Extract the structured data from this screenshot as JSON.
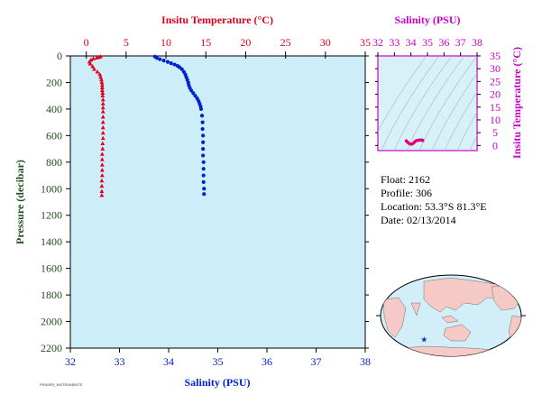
{
  "colors": {
    "temperature": "#e0001b",
    "salinity": "#0022cc",
    "pressure_axis": "#1f4f1f",
    "ts_axis": "#cc00cc",
    "plot_bg": "#cdeef8",
    "ts_bg": "#d8f1f8"
  },
  "chart_data": [
    {
      "type": "line",
      "title": "",
      "top_axis_label": "Insitu Temperature (°C)",
      "bottom_axis_label": "Salinity (PSU)",
      "left_axis_label": "Pressure (decibar)",
      "temperature_axis": {
        "range": [
          -2,
          35
        ],
        "ticks": [
          "0",
          "5",
          "10",
          "15",
          "20",
          "25",
          "30",
          "35"
        ]
      },
      "salinity_axis": {
        "range": [
          32,
          38
        ],
        "ticks": [
          "32",
          "33",
          "34",
          "35",
          "36",
          "37",
          "38"
        ]
      },
      "pressure_axis": {
        "range": [
          2200,
          0
        ],
        "reversed": true,
        "ticks": [
          "0",
          "200",
          "400",
          "600",
          "800",
          "1000",
          "1200",
          "1400",
          "1600",
          "1800",
          "2000",
          "2200"
        ]
      },
      "grid": false,
      "series": [
        {
          "name": "",
          "marker": "triangle",
          "quantity": "temperature",
          "points": [
            [
              1.8,
              5
            ],
            [
              1.6,
              10
            ],
            [
              1.3,
              15
            ],
            [
              0.9,
              20
            ],
            [
              0.6,
              30
            ],
            [
              0.4,
              45
            ],
            [
              0.5,
              60
            ],
            [
              0.8,
              80
            ],
            [
              1.0,
              100
            ],
            [
              1.4,
              120
            ],
            [
              1.7,
              140
            ],
            [
              1.8,
              160
            ],
            [
              1.9,
              180
            ],
            [
              1.95,
              200
            ],
            [
              2.0,
              220
            ],
            [
              2.0,
              240
            ],
            [
              2.0,
              260
            ],
            [
              2.05,
              280
            ],
            [
              2.05,
              300
            ],
            [
              2.1,
              330
            ],
            [
              2.1,
              360
            ],
            [
              2.1,
              390
            ],
            [
              2.1,
              420
            ],
            [
              2.1,
              460
            ],
            [
              2.1,
              500
            ],
            [
              2.1,
              540
            ],
            [
              2.1,
              580
            ],
            [
              2.1,
              620
            ],
            [
              2.05,
              660
            ],
            [
              2.05,
              700
            ],
            [
              2.0,
              740
            ],
            [
              2.0,
              780
            ],
            [
              2.0,
              820
            ],
            [
              2.0,
              860
            ],
            [
              2.0,
              900
            ],
            [
              1.95,
              940
            ],
            [
              1.95,
              980
            ],
            [
              1.95,
              1020
            ],
            [
              1.95,
              1050
            ]
          ]
        },
        {
          "name": "",
          "marker": "circle",
          "quantity": "salinity",
          "points": [
            [
              33.72,
              5
            ],
            [
              33.76,
              15
            ],
            [
              33.82,
              25
            ],
            [
              33.9,
              35
            ],
            [
              33.98,
              45
            ],
            [
              34.05,
              55
            ],
            [
              34.12,
              65
            ],
            [
              34.18,
              75
            ],
            [
              34.22,
              85
            ],
            [
              34.27,
              100
            ],
            [
              34.31,
              120
            ],
            [
              34.34,
              140
            ],
            [
              34.36,
              160
            ],
            [
              34.38,
              180
            ],
            [
              34.4,
              200
            ],
            [
              34.41,
              220
            ],
            [
              34.43,
              240
            ],
            [
              34.46,
              260
            ],
            [
              34.5,
              280
            ],
            [
              34.54,
              300
            ],
            [
              34.58,
              320
            ],
            [
              34.61,
              340
            ],
            [
              34.63,
              360
            ],
            [
              34.65,
              380
            ],
            [
              34.66,
              400
            ],
            [
              34.68,
              450
            ],
            [
              34.69,
              500
            ],
            [
              34.69,
              550
            ],
            [
              34.7,
              600
            ],
            [
              34.7,
              650
            ],
            [
              34.7,
              700
            ],
            [
              34.7,
              750
            ],
            [
              34.71,
              800
            ],
            [
              34.71,
              850
            ],
            [
              34.71,
              900
            ],
            [
              34.71,
              950
            ],
            [
              34.72,
              1000
            ],
            [
              34.72,
              1040
            ]
          ]
        }
      ]
    },
    {
      "type": "scatter",
      "title": "",
      "top_axis_label": "Salinity (PSU)",
      "right_axis_label": "Insitu Temperature (°C)",
      "salinity_axis": {
        "range": [
          32,
          38
        ],
        "ticks": [
          "32",
          "33",
          "34",
          "35",
          "36",
          "37",
          "38"
        ]
      },
      "temperature_axis": {
        "range": [
          -2,
          35
        ],
        "ticks": [
          "0",
          "5",
          "10",
          "15",
          "20",
          "25",
          "30",
          "35"
        ]
      },
      "density_contours": true,
      "series": [
        {
          "name": "",
          "points": [
            [
              33.72,
              1.8
            ],
            [
              33.78,
              1.4
            ],
            [
              33.85,
              1.0
            ],
            [
              33.92,
              0.7
            ],
            [
              34.0,
              0.5
            ],
            [
              34.08,
              0.6
            ],
            [
              34.15,
              0.9
            ],
            [
              34.22,
              1.3
            ],
            [
              34.28,
              1.7
            ],
            [
              34.34,
              1.9
            ],
            [
              34.4,
              2.0
            ],
            [
              34.46,
              2.05
            ],
            [
              34.52,
              2.1
            ],
            [
              34.58,
              2.1
            ],
            [
              34.63,
              2.1
            ],
            [
              34.66,
              2.1
            ],
            [
              34.68,
              2.05
            ],
            [
              34.7,
              2.0
            ],
            [
              34.71,
              2.0
            ],
            [
              34.72,
              1.95
            ]
          ]
        }
      ]
    }
  ],
  "info": {
    "float": "Float: 2162",
    "profile": "Profile: 306",
    "location": "Location: 53.3°S 81.3°E",
    "date": "Date: 02/13/2014"
  },
  "map": {
    "marker_lat": -53.3,
    "marker_lon": 81.3,
    "marker_icon": "star-icon"
  },
  "footer_small": "FRASER_INSTRUMENTS"
}
